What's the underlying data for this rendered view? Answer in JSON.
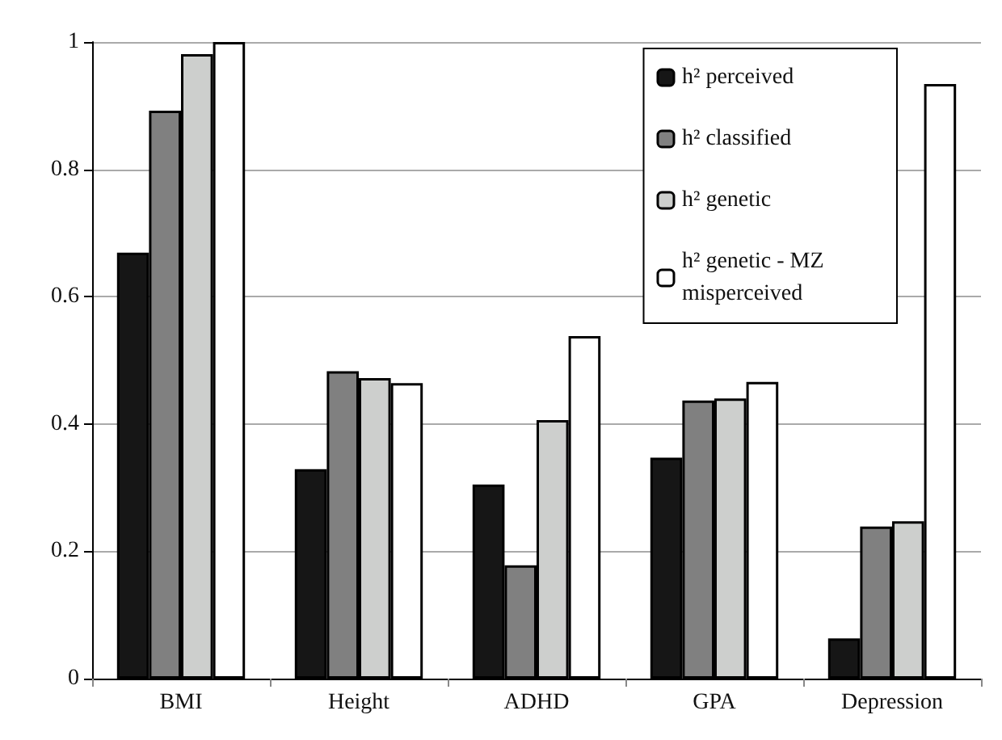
{
  "chart_data": {
    "type": "bar",
    "categories": [
      "BMI",
      "Height",
      "ADHD",
      "GPA",
      "Depression"
    ],
    "series": [
      {
        "name": "h² perceived",
        "color": "#161616",
        "values": [
          0.669,
          0.329,
          0.305,
          0.347,
          0.063
        ]
      },
      {
        "name": "h² classified",
        "color": "#808080",
        "values": [
          0.892,
          0.483,
          0.178,
          0.437,
          0.239
        ]
      },
      {
        "name": "h² genetic",
        "color": "#cdcfcd",
        "values": [
          0.981,
          0.472,
          0.406,
          0.44,
          0.247
        ]
      },
      {
        "name": "h² genetic - MZ misperceived",
        "color": "#ffffff",
        "values": [
          1.0,
          0.464,
          0.538,
          0.466,
          0.934
        ]
      }
    ],
    "ylim": [
      0,
      1
    ],
    "yticks": [
      0,
      0.2,
      0.4,
      0.6,
      0.8,
      1
    ],
    "grid": "y",
    "legend": "top right"
  }
}
